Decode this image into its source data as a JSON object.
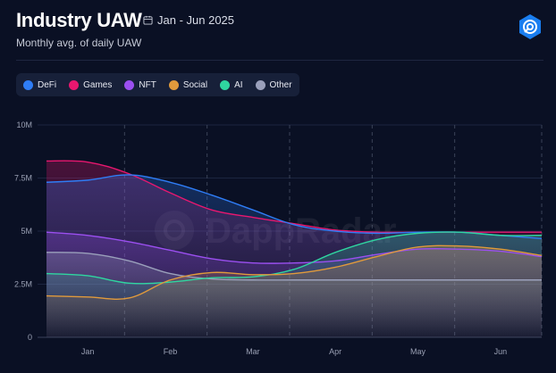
{
  "header": {
    "title": "Industry UAW",
    "date_range": "Jan - Jun 2025",
    "subtitle": "Monthly avg. of daily UAW",
    "icons": {
      "calendar": "calendar-icon",
      "brand": "dappradar-logo-icon"
    }
  },
  "watermark": "DappRadar",
  "legend": [
    {
      "label": "DeFi",
      "color": "#2f7df6"
    },
    {
      "label": "Games",
      "color": "#e8176f"
    },
    {
      "label": "NFT",
      "color": "#9b4ff0"
    },
    {
      "label": "Social",
      "color": "#e09a3c"
    },
    {
      "label": "AI",
      "color": "#2fd6a0"
    },
    {
      "label": "Other",
      "color": "#9aa0bb"
    }
  ],
  "chart_data": {
    "type": "area",
    "categories": [
      "Jan",
      "Feb",
      "Mar",
      "Apr",
      "May",
      "Jun"
    ],
    "x": [
      "Jan",
      "Jan",
      "Feb",
      "Feb",
      "Mar",
      "Mar",
      "Apr",
      "Apr",
      "May",
      "May",
      "Jun",
      "Jun",
      "Jun"
    ],
    "y_ticks": [
      "0",
      "2.5M",
      "5M",
      "7.5M",
      "10M"
    ],
    "ylim": [
      0,
      10000000
    ],
    "grid": true,
    "legend_position": "top-left",
    "series": [
      {
        "name": "DeFi",
        "color": "#2f7df6",
        "values": [
          7300000,
          7400000,
          7650000,
          7300000,
          6700000,
          6000000,
          5300000,
          5000000,
          4900000,
          4950000,
          4950000,
          4800000,
          4650000
        ]
      },
      {
        "name": "Games",
        "color": "#e8176f",
        "values": [
          8300000,
          8250000,
          7700000,
          6800000,
          6000000,
          5650000,
          5350000,
          5050000,
          4950000,
          4950000,
          4950000,
          4950000,
          4950000
        ]
      },
      {
        "name": "NFT",
        "color": "#9b4ff0",
        "values": [
          4950000,
          4800000,
          4500000,
          4100000,
          3700000,
          3500000,
          3500000,
          3600000,
          3900000,
          4150000,
          4150000,
          4050000,
          3800000
        ]
      },
      {
        "name": "Social",
        "color": "#e09a3c",
        "values": [
          1950000,
          1900000,
          1850000,
          2700000,
          3050000,
          2950000,
          3000000,
          3300000,
          3800000,
          4250000,
          4300000,
          4150000,
          3850000
        ]
      },
      {
        "name": "AI",
        "color": "#2fd6a0",
        "values": [
          3000000,
          2900000,
          2550000,
          2600000,
          2800000,
          2850000,
          3200000,
          4000000,
          4600000,
          4900000,
          4950000,
          4800000,
          4800000
        ]
      },
      {
        "name": "Other",
        "color": "#9aa0bb",
        "values": [
          4000000,
          3950000,
          3600000,
          3000000,
          2750000,
          2700000,
          2700000,
          2700000,
          2700000,
          2700000,
          2700000,
          2700000,
          2700000
        ]
      }
    ]
  }
}
